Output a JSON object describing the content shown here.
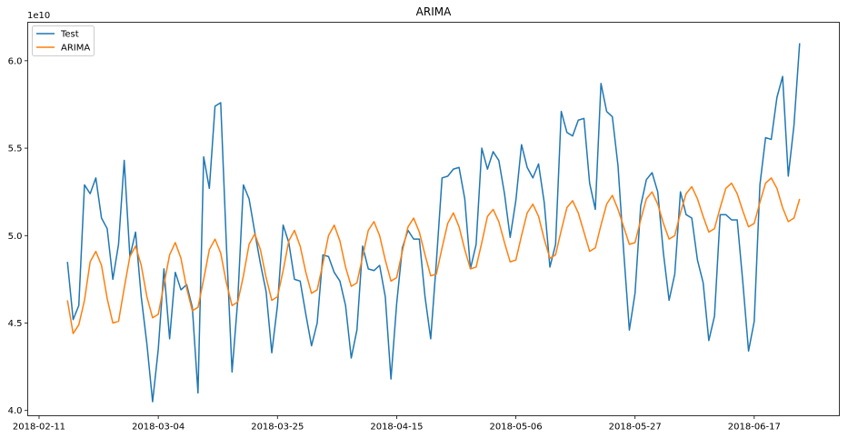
{
  "chart_data": {
    "type": "line",
    "title": "ARIMA",
    "xlabel": "",
    "ylabel": "",
    "y_scale_label": "1e10",
    "ylim": [
      3.97,
      6.22
    ],
    "xlim": [
      "2018-02-09",
      "2018-07-02"
    ],
    "grid": false,
    "legend_position": "upper left",
    "x_ticks": [
      "2018-02-11",
      "2018-03-04",
      "2018-03-25",
      "2018-04-15",
      "2018-05-06",
      "2018-05-27",
      "2018-06-17"
    ],
    "y_ticks": [
      "4.0",
      "4.5",
      "5.0",
      "5.5",
      "6.0"
    ],
    "start_date": "2018-02-16",
    "series": [
      {
        "name": "Test",
        "color": "#1f77b4",
        "values": [
          4.85,
          4.52,
          4.6,
          5.29,
          5.24,
          5.33,
          5.1,
          5.04,
          4.75,
          4.95,
          5.43,
          4.88,
          5.02,
          4.65,
          4.38,
          4.05,
          4.35,
          4.81,
          4.41,
          4.79,
          4.69,
          4.72,
          4.59,
          4.1,
          5.45,
          5.27,
          5.74,
          5.76,
          4.95,
          4.22,
          4.63,
          5.29,
          5.21,
          5.02,
          4.84,
          4.68,
          4.33,
          4.6,
          5.06,
          4.96,
          4.75,
          4.74,
          4.55,
          4.37,
          4.5,
          4.89,
          4.88,
          4.79,
          4.74,
          4.6,
          4.3,
          4.46,
          4.94,
          4.81,
          4.8,
          4.83,
          4.65,
          4.18,
          4.61,
          4.93,
          5.03,
          4.98,
          4.98,
          4.65,
          4.41,
          4.85,
          5.33,
          5.34,
          5.38,
          5.39,
          5.21,
          4.81,
          4.95,
          5.5,
          5.38,
          5.48,
          5.43,
          5.24,
          4.99,
          5.2,
          5.52,
          5.39,
          5.33,
          5.41,
          5.19,
          4.82,
          4.95,
          5.71,
          5.59,
          5.57,
          5.66,
          5.67,
          5.3,
          5.15,
          5.87,
          5.71,
          5.68,
          5.4,
          4.91,
          4.46,
          4.67,
          5.17,
          5.32,
          5.36,
          5.25,
          4.9,
          4.63,
          4.78,
          5.25,
          5.12,
          5.1,
          4.86,
          4.73,
          4.4,
          4.54,
          5.12,
          5.12,
          5.09,
          5.09,
          4.73,
          4.34,
          4.51,
          5.29,
          5.56,
          5.55,
          5.79,
          5.91,
          5.34,
          5.63,
          6.1
        ]
      },
      {
        "name": "ARIMA",
        "color": "#ff7f0e",
        "values": [
          4.63,
          4.44,
          4.49,
          4.63,
          4.85,
          4.91,
          4.83,
          4.64,
          4.5,
          4.51,
          4.7,
          4.88,
          4.94,
          4.83,
          4.65,
          4.53,
          4.55,
          4.72,
          4.89,
          4.96,
          4.87,
          4.7,
          4.57,
          4.59,
          4.75,
          4.92,
          4.98,
          4.9,
          4.73,
          4.6,
          4.62,
          4.77,
          4.95,
          5.01,
          4.92,
          4.76,
          4.63,
          4.65,
          4.8,
          4.97,
          5.03,
          4.94,
          4.79,
          4.67,
          4.69,
          4.84,
          5.0,
          5.06,
          4.97,
          4.82,
          4.71,
          4.73,
          4.88,
          5.03,
          5.08,
          5.0,
          4.86,
          4.74,
          4.76,
          4.91,
          5.05,
          5.1,
          5.02,
          4.89,
          4.77,
          4.78,
          4.93,
          5.07,
          5.13,
          5.05,
          4.92,
          4.81,
          4.82,
          4.96,
          5.11,
          5.15,
          5.08,
          4.96,
          4.85,
          4.86,
          5.0,
          5.13,
          5.18,
          5.11,
          4.98,
          4.87,
          4.89,
          5.03,
          5.16,
          5.2,
          5.13,
          5.02,
          4.91,
          4.93,
          5.06,
          5.18,
          5.23,
          5.15,
          5.05,
          4.95,
          4.96,
          5.09,
          5.21,
          5.25,
          5.18,
          5.07,
          4.98,
          5.0,
          5.13,
          5.24,
          5.28,
          5.21,
          5.11,
          5.02,
          5.04,
          5.16,
          5.27,
          5.3,
          5.24,
          5.14,
          5.05,
          5.07,
          5.19,
          5.3,
          5.33,
          5.27,
          5.16,
          5.08,
          5.1,
          5.21
        ]
      }
    ]
  }
}
